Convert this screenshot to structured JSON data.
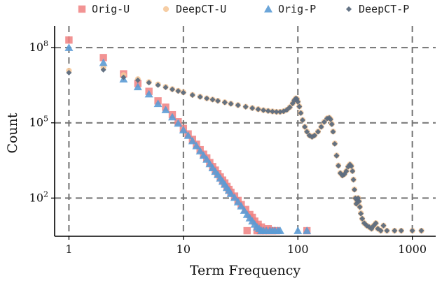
{
  "chart_data": {
    "type": "scatter",
    "x_label": "Term Frequency",
    "y_label": "Count",
    "x_scale": "log",
    "y_scale": "log",
    "x_range": [
      0.75,
      1600
    ],
    "y_range": [
      3,
      500000000
    ],
    "x_ticks": [
      {
        "value": 1,
        "label": "1"
      },
      {
        "value": 10,
        "label": "10"
      },
      {
        "value": 100,
        "label": "100"
      },
      {
        "value": 1000,
        "label": "1000"
      }
    ],
    "y_ticks": [
      {
        "value": 100,
        "base": "10",
        "exp": "2"
      },
      {
        "value": 100000,
        "base": "10",
        "exp": "5"
      },
      {
        "value": 100000000,
        "base": "10",
        "exp": "8"
      }
    ],
    "grid": true,
    "legend_position": "top",
    "series": [
      {
        "name": "Orig-U",
        "marker": "square",
        "color": "#F08080",
        "points": [
          [
            1,
            200000000
          ],
          [
            2,
            40000000
          ],
          [
            3,
            9000000
          ],
          [
            4,
            3700000
          ],
          [
            5,
            1800000
          ],
          [
            6,
            750000
          ],
          [
            7,
            420000
          ],
          [
            8,
            210000
          ],
          [
            9,
            110000
          ],
          [
            10,
            60000
          ],
          [
            11,
            36000
          ],
          [
            12,
            22000
          ],
          [
            13,
            14000
          ],
          [
            14,
            8500
          ],
          [
            15,
            5600
          ],
          [
            16,
            4000
          ],
          [
            17,
            2600
          ],
          [
            18,
            1800
          ],
          [
            19,
            1300
          ],
          [
            20,
            950
          ],
          [
            21,
            700
          ],
          [
            22,
            520
          ],
          [
            23,
            400
          ],
          [
            24,
            290
          ],
          [
            25,
            220
          ],
          [
            26,
            170
          ],
          [
            28,
            120
          ],
          [
            30,
            80
          ],
          [
            32,
            55
          ],
          [
            35,
            35
          ],
          [
            38,
            22
          ],
          [
            40,
            17
          ],
          [
            42,
            12
          ],
          [
            45,
            9
          ],
          [
            48,
            7
          ],
          [
            50,
            5
          ],
          [
            55,
            6
          ],
          [
            60,
            5
          ],
          [
            36,
            5
          ],
          [
            44,
            5
          ],
          [
            47,
            5
          ],
          [
            52,
            5
          ],
          [
            56,
            5
          ],
          [
            65,
            5
          ],
          [
            120,
            5
          ]
        ]
      },
      {
        "name": "DeepCT-U",
        "marker": "circle",
        "color": "#F5C89A",
        "points": [
          [
            1,
            12000000
          ],
          [
            2,
            16000000
          ],
          [
            3,
            8000000
          ],
          [
            4,
            5500000
          ],
          [
            5,
            4200000
          ],
          [
            6,
            3400000
          ],
          [
            7,
            2700000
          ],
          [
            8,
            2200000
          ],
          [
            9,
            1900000
          ],
          [
            10,
            1650000
          ],
          [
            12,
            1300000
          ],
          [
            14,
            1100000
          ],
          [
            16,
            950000
          ],
          [
            18,
            850000
          ],
          [
            20,
            760000
          ],
          [
            23,
            660000
          ],
          [
            26,
            580000
          ],
          [
            30,
            510000
          ],
          [
            35,
            440000
          ],
          [
            40,
            390000
          ],
          [
            45,
            350000
          ],
          [
            50,
            320000
          ],
          [
            55,
            300000
          ],
          [
            60,
            285000
          ],
          [
            65,
            275000
          ],
          [
            70,
            275000
          ],
          [
            75,
            290000
          ],
          [
            80,
            330000
          ],
          [
            85,
            420000
          ],
          [
            90,
            600000
          ],
          [
            93,
            800000
          ],
          [
            96,
            950000
          ],
          [
            98,
            900000
          ],
          [
            100,
            700000
          ],
          [
            103,
            450000
          ],
          [
            106,
            250000
          ],
          [
            110,
            130000
          ],
          [
            115,
            70000
          ],
          [
            120,
            45000
          ],
          [
            126,
            32000
          ],
          [
            133,
            28000
          ],
          [
            140,
            32000
          ],
          [
            150,
            45000
          ],
          [
            160,
            70000
          ],
          [
            170,
            110000
          ],
          [
            180,
            150000
          ],
          [
            188,
            160000
          ],
          [
            193,
            140000
          ],
          [
            198,
            90000
          ],
          [
            203,
            45000
          ],
          [
            210,
            15000
          ],
          [
            218,
            5000
          ],
          [
            226,
            2000
          ],
          [
            235,
            1000
          ],
          [
            245,
            800
          ],
          [
            255,
            900
          ],
          [
            265,
            1200
          ],
          [
            275,
            1800
          ],
          [
            285,
            2200
          ],
          [
            293,
            1900
          ],
          [
            300,
            1200
          ],
          [
            306,
            550
          ],
          [
            312,
            220
          ],
          [
            318,
            100
          ],
          [
            324,
            60
          ],
          [
            330,
            80
          ],
          [
            336,
            100
          ],
          [
            342,
            75
          ],
          [
            348,
            45
          ],
          [
            355,
            25
          ],
          [
            365,
            15
          ],
          [
            380,
            10
          ],
          [
            400,
            8
          ],
          [
            420,
            7
          ],
          [
            440,
            6
          ],
          [
            460,
            8
          ],
          [
            480,
            10
          ],
          [
            500,
            6
          ],
          [
            530,
            5
          ],
          [
            560,
            8
          ],
          [
            600,
            5
          ],
          [
            700,
            5
          ],
          [
            800,
            5
          ],
          [
            1000,
            5
          ],
          [
            1200,
            5
          ]
        ]
      },
      {
        "name": "Orig-P",
        "marker": "triangle",
        "color": "#5B9BD5",
        "points": [
          [
            1,
            100000000
          ],
          [
            2,
            25000000
          ],
          [
            3,
            5500000
          ],
          [
            4,
            2700000
          ],
          [
            5,
            1400000
          ],
          [
            6,
            580000
          ],
          [
            7,
            330000
          ],
          [
            8,
            170000
          ],
          [
            9,
            95000
          ],
          [
            10,
            52000
          ],
          [
            11,
            31000
          ],
          [
            12,
            19000
          ],
          [
            13,
            12000
          ],
          [
            14,
            7500
          ],
          [
            15,
            5000
          ],
          [
            16,
            3500
          ],
          [
            17,
            2300
          ],
          [
            18,
            1600
          ],
          [
            19,
            1150
          ],
          [
            20,
            850
          ],
          [
            21,
            620
          ],
          [
            22,
            460
          ],
          [
            23,
            350
          ],
          [
            24,
            260
          ],
          [
            25,
            200
          ],
          [
            26,
            150
          ],
          [
            28,
            105
          ],
          [
            30,
            70
          ],
          [
            32,
            48
          ],
          [
            34,
            32
          ],
          [
            36,
            22
          ],
          [
            38,
            16
          ],
          [
            40,
            12
          ],
          [
            42,
            9
          ],
          [
            44,
            7
          ],
          [
            46,
            6
          ],
          [
            48,
            5
          ],
          [
            50,
            5
          ],
          [
            53,
            5
          ],
          [
            57,
            5
          ],
          [
            60,
            5
          ],
          [
            63,
            5
          ],
          [
            67,
            5
          ],
          [
            70,
            5
          ],
          [
            100,
            5
          ],
          [
            120,
            5
          ]
        ]
      },
      {
        "name": "DeepCT-P",
        "marker": "diamond",
        "color": "#5C6B7E",
        "points": [
          [
            1,
            10000000
          ],
          [
            2,
            13000000
          ],
          [
            3,
            6500000
          ],
          [
            4,
            5000000
          ],
          [
            5,
            4000000
          ],
          [
            6,
            3200000
          ],
          [
            7,
            2600000
          ],
          [
            8,
            2150000
          ],
          [
            9,
            1850000
          ],
          [
            10,
            1600000
          ],
          [
            12,
            1280000
          ],
          [
            14,
            1080000
          ],
          [
            16,
            940000
          ],
          [
            18,
            840000
          ],
          [
            20,
            750000
          ],
          [
            23,
            650000
          ],
          [
            26,
            575000
          ],
          [
            30,
            505000
          ],
          [
            35,
            435000
          ],
          [
            40,
            385000
          ],
          [
            45,
            345000
          ],
          [
            50,
            318000
          ],
          [
            55,
            298000
          ],
          [
            60,
            283000
          ],
          [
            65,
            273000
          ],
          [
            70,
            273000
          ],
          [
            75,
            288000
          ],
          [
            80,
            328000
          ],
          [
            85,
            415000
          ],
          [
            90,
            590000
          ],
          [
            93,
            790000
          ],
          [
            96,
            940000
          ],
          [
            98,
            890000
          ],
          [
            100,
            690000
          ],
          [
            103,
            445000
          ],
          [
            106,
            245000
          ],
          [
            110,
            128000
          ],
          [
            115,
            69000
          ],
          [
            120,
            44000
          ],
          [
            126,
            31500
          ],
          [
            133,
            27500
          ],
          [
            140,
            31500
          ],
          [
            150,
            44000
          ],
          [
            160,
            69000
          ],
          [
            170,
            108000
          ],
          [
            180,
            148000
          ],
          [
            188,
            158000
          ],
          [
            193,
            138000
          ],
          [
            198,
            88000
          ],
          [
            203,
            44000
          ],
          [
            210,
            14500
          ],
          [
            218,
            4900
          ],
          [
            226,
            1950
          ],
          [
            235,
            980
          ],
          [
            245,
            790
          ],
          [
            255,
            890
          ],
          [
            265,
            1180
          ],
          [
            275,
            1780
          ],
          [
            285,
            2180
          ],
          [
            293,
            1880
          ],
          [
            300,
            1180
          ],
          [
            306,
            540
          ],
          [
            312,
            215
          ],
          [
            318,
            98
          ],
          [
            324,
            59
          ],
          [
            330,
            79
          ],
          [
            336,
            99
          ],
          [
            342,
            74
          ],
          [
            348,
            44
          ],
          [
            355,
            24
          ],
          [
            365,
            15
          ],
          [
            380,
            10
          ],
          [
            400,
            8
          ],
          [
            420,
            7
          ],
          [
            440,
            6
          ],
          [
            460,
            8
          ],
          [
            480,
            10
          ],
          [
            500,
            6
          ],
          [
            530,
            5
          ],
          [
            560,
            8
          ],
          [
            600,
            5
          ],
          [
            700,
            5
          ],
          [
            800,
            5
          ],
          [
            1000,
            5
          ],
          [
            1200,
            5
          ]
        ]
      }
    ]
  }
}
